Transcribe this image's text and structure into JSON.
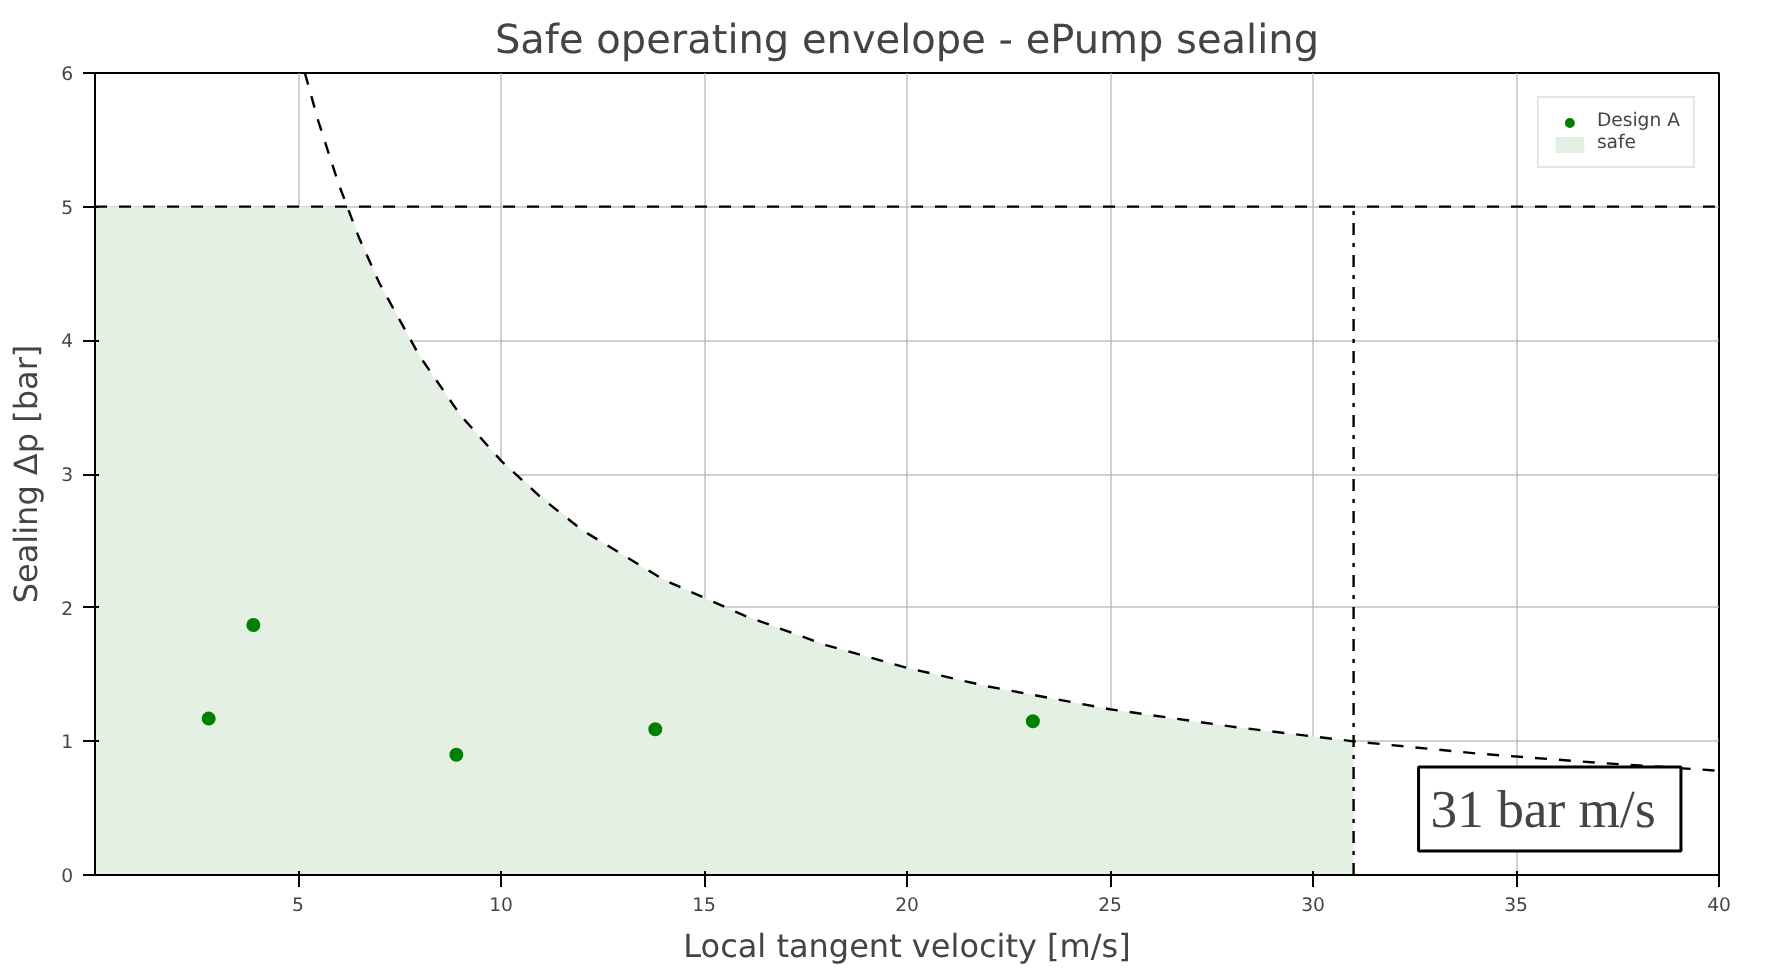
{
  "chart_data": {
    "type": "scatter",
    "title": "Safe operating envelope - ePump sealing",
    "xlabel": "Local tangent velocity [m/s]",
    "ylabel": "Sealing Δp [bar]",
    "xlim": [
      0,
      40
    ],
    "ylim": [
      0,
      6
    ],
    "xticks": [
      5,
      10,
      15,
      20,
      25,
      30,
      35,
      40
    ],
    "yticks": [
      0,
      1,
      2,
      3,
      4,
      5,
      6
    ],
    "grid": true,
    "legend": "top right",
    "series": [
      {
        "type": "area",
        "name": "safe",
        "color": "#e5f0e5",
        "x": [
          0,
          6.2,
          7,
          8,
          9,
          10,
          12,
          14,
          16,
          18,
          20,
          22,
          25,
          28,
          31
        ],
        "values": [
          5,
          5,
          4.43,
          3.88,
          3.44,
          3.1,
          2.58,
          2.21,
          1.94,
          1.72,
          1.55,
          1.41,
          1.24,
          1.11,
          1.0
        ]
      },
      {
        "type": "line",
        "color": "#000000",
        "line_style": "dashed",
        "x": [
          5.17,
          5.5,
          6,
          6.5,
          7,
          8,
          9,
          10,
          11,
          12,
          14,
          16,
          18,
          20,
          22,
          25,
          28,
          31,
          34,
          37,
          40
        ],
        "values": [
          6,
          5.64,
          5.17,
          4.77,
          4.43,
          3.88,
          3.44,
          3.1,
          2.82,
          2.58,
          2.21,
          1.94,
          1.72,
          1.55,
          1.41,
          1.24,
          1.11,
          1.0,
          0.91,
          0.84,
          0.78
        ]
      },
      {
        "type": "line",
        "color": "#000000",
        "line_style": "dashdot",
        "x": [
          31,
          31
        ],
        "values": [
          0,
          5
        ]
      },
      {
        "name": "Design A",
        "color": "#008000",
        "marker": "circle",
        "x": [
          2.8,
          3.9,
          8.9,
          13.8,
          23.1
        ],
        "values": [
          1.17,
          1.87,
          0.9,
          1.09,
          1.15
        ]
      }
    ],
    "ref_lines": [
      {
        "axis": "y",
        "value": 5,
        "color": "#000000",
        "line_style": "dashed"
      }
    ],
    "annotations": [
      "31 bar  m/s"
    ]
  }
}
